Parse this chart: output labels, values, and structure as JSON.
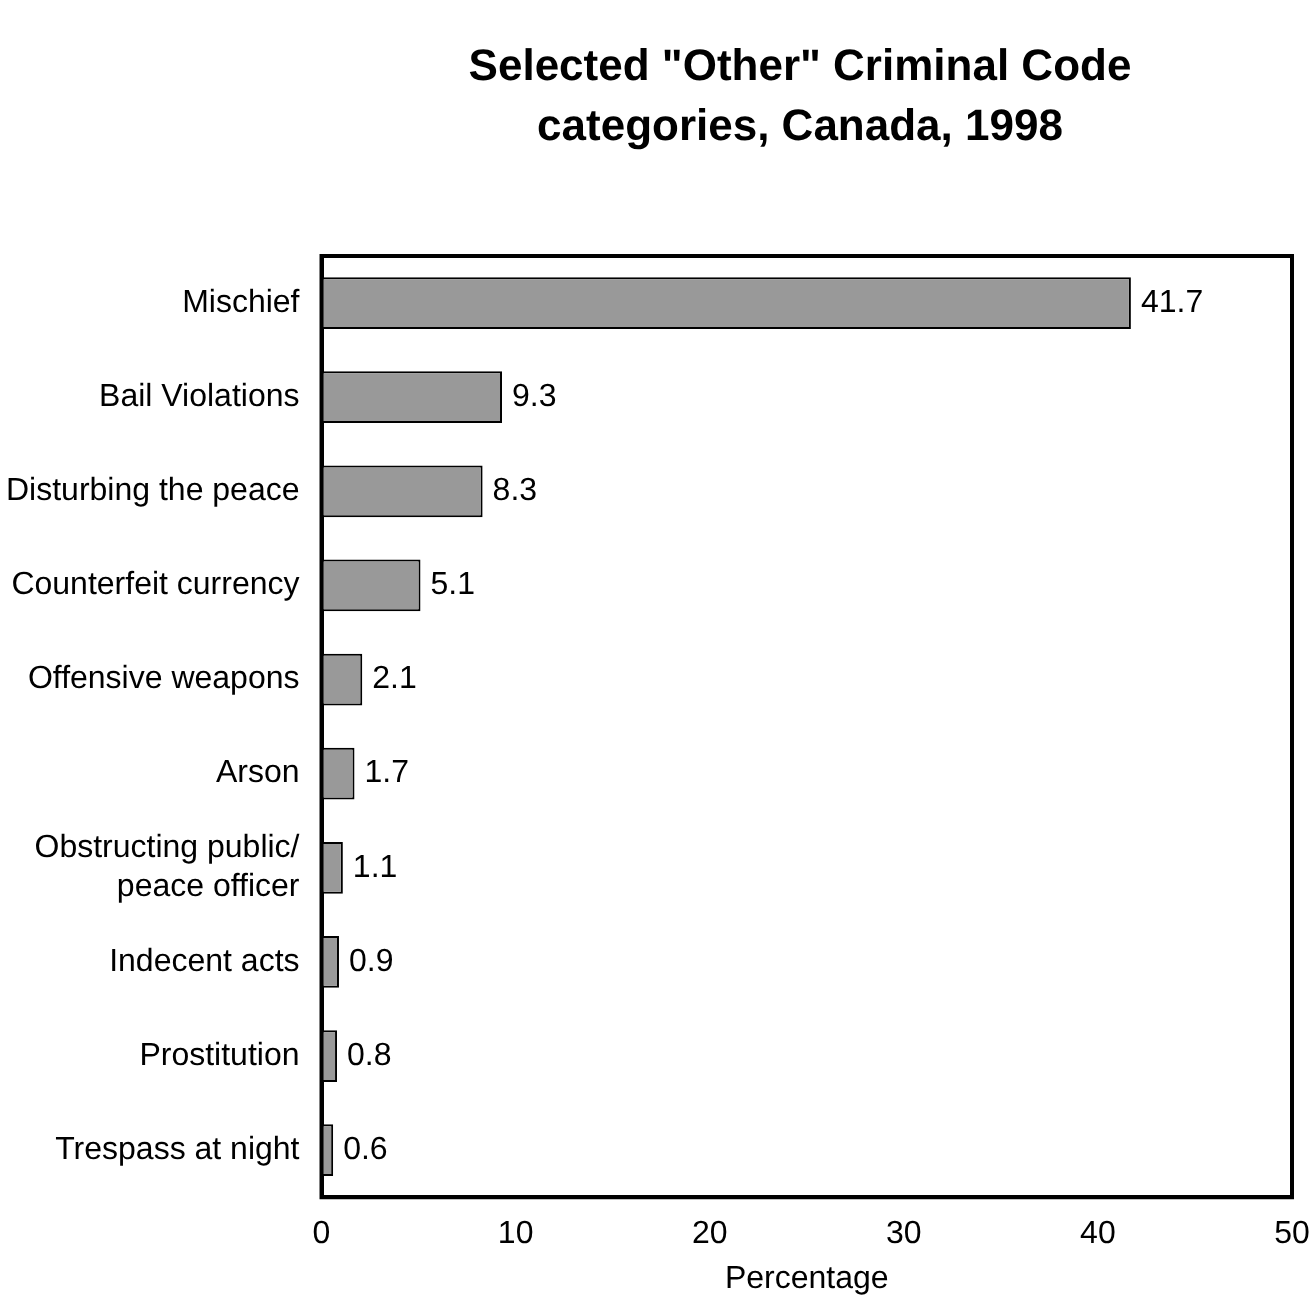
{
  "chart_data": {
    "type": "bar",
    "orientation": "horizontal",
    "title": "Selected \"Other\" Criminal Code categories, Canada, 1998",
    "xlabel": "Percentage",
    "categories": [
      "Mischief",
      "Bail Violations",
      "Disturbing the peace",
      "Counterfeit currency",
      "Offensive weapons",
      "Arson",
      "Obstructing public/ peace officer",
      "Indecent acts",
      "Prostitution",
      "Trespass at night"
    ],
    "values": [
      41.7,
      9.3,
      8.3,
      5.1,
      2.1,
      1.7,
      1.1,
      0.9,
      0.8,
      0.6
    ],
    "color": "#999999",
    "xlim": [
      0,
      50
    ],
    "xticks": [
      0,
      10,
      20,
      30,
      40,
      50
    ],
    "grid": false,
    "legend": false,
    "data_labels": true
  }
}
